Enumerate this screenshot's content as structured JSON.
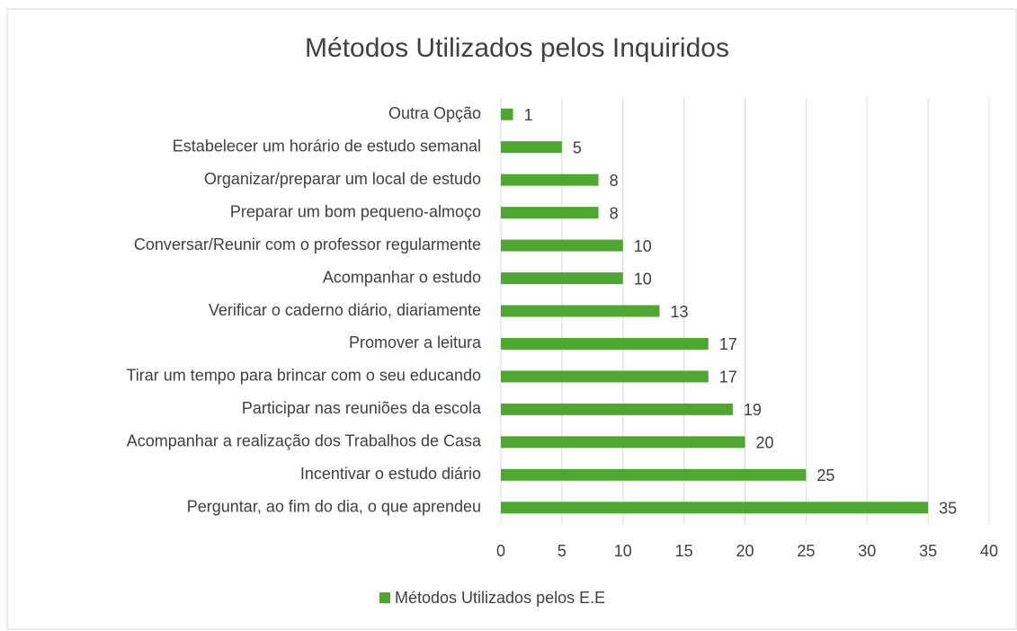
{
  "chart_data": {
    "type": "hbar",
    "title": "Métodos Utilizados pelos Inquiridos",
    "categories": [
      "Outra Opção",
      "Estabelecer um horário de estudo semanal",
      "Organizar/preparar um local de estudo",
      "Preparar um bom pequeno-almoço",
      "Conversar/Reunir com o professor regularmente",
      "Acompanhar o estudo",
      "Verificar o caderno diário, diariamente",
      "Promover a leitura",
      "Tirar um tempo para brincar com o seu educando",
      "Participar nas reuniões da escola",
      "Acompanhar a realização dos Trabalhos de Casa",
      "Incentivar o estudo diário",
      "Perguntar, ao fim do dia, o que aprendeu"
    ],
    "series": [
      {
        "name": "Métodos Utilizados pelos E.E",
        "color": "#4ea72e",
        "values": [
          1,
          5,
          8,
          8,
          10,
          10,
          13,
          17,
          17,
          19,
          20,
          25,
          35
        ]
      }
    ],
    "xlim": [
      0,
      40
    ],
    "xticks": [
      0,
      5,
      10,
      15,
      20,
      25,
      30,
      35,
      40
    ],
    "grid": true,
    "legend": "bottom"
  }
}
